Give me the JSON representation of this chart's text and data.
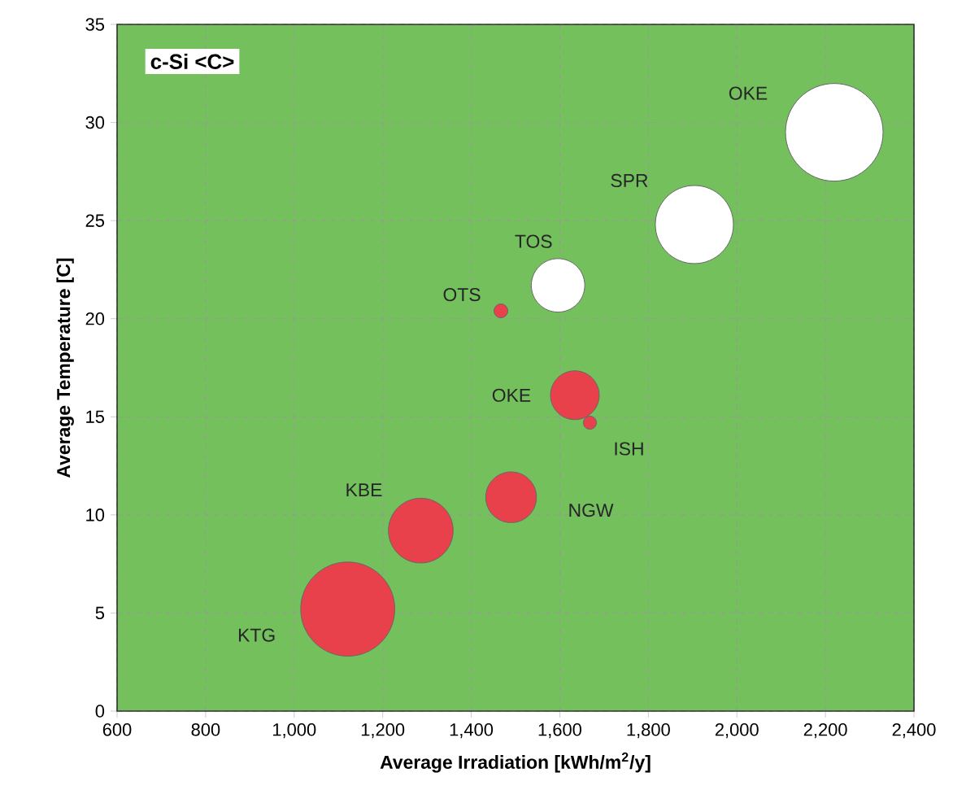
{
  "chart_data": {
    "type": "bubble",
    "xlabel": "Average Irradiation [kWh/m$^{2}$/y]",
    "ylabel": "Average Temperature [C]",
    "xlim": [
      600,
      2400
    ],
    "xticks": [
      600,
      800,
      {
        "value": 1000,
        "label": "1,000"
      },
      {
        "value": 1200,
        "label": "1,200"
      },
      {
        "value": 1400,
        "label": "1,400"
      },
      {
        "value": 1600,
        "label": "1,600"
      },
      {
        "value": 1800,
        "label": "1,800"
      },
      {
        "value": 2000,
        "label": "2,000"
      },
      {
        "value": 2200,
        "label": "2,200"
      },
      {
        "value": 2400,
        "label": "2,400"
      }
    ],
    "ylim": [
      0,
      35
    ],
    "yticks": [
      0,
      5,
      10,
      15,
      20,
      25,
      30,
      35
    ],
    "grid": true,
    "series": [
      {
        "color": "#ffffff",
        "x": [
          2220,
          1904,
          1596
        ],
        "values": [
          29.5,
          24.8,
          21.7
        ],
        "sizes": [
          1,
          0.64,
          0.3
        ]
      },
      {
        "color": "#e8414b",
        "x": [
          1467,
          1634,
          1668,
          1490,
          1286,
          1121
        ],
        "values": [
          20.4,
          16.1,
          14.7,
          10.9,
          9.2,
          5.2
        ],
        "sizes": [
          0.02,
          0.25,
          0.018,
          0.27,
          0.44,
          0.93
        ]
      }
    ],
    "annotations": [
      "c-Si <C>",
      "OKE",
      "SPR",
      "TOS",
      "OTS",
      "OKE",
      "ISH",
      "NGW",
      "KBE",
      "KTG"
    ]
  }
}
